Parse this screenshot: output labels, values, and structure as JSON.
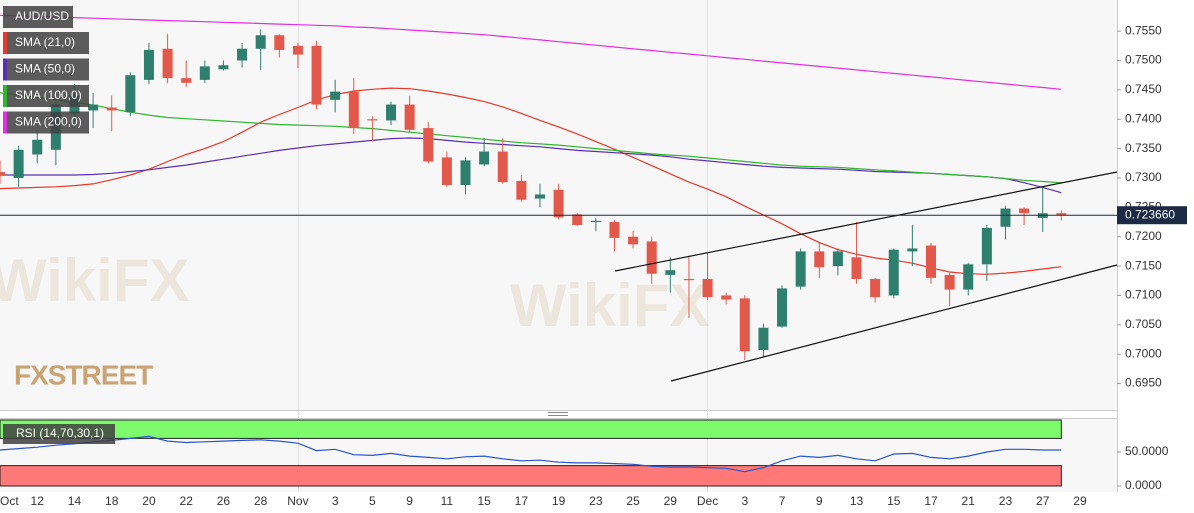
{
  "chart_data": [
    {
      "type": "candlestick",
      "symbol": "AUD/USD",
      "logo": "FXSTREET",
      "watermark": "WikiFX",
      "categories": [
        "Oct",
        null,
        "12",
        null,
        "14",
        null,
        "18",
        null,
        "20",
        null,
        "22",
        null,
        "26",
        null,
        "28",
        null,
        "Nov",
        null,
        "3",
        null,
        "5",
        null,
        "9",
        null,
        "11",
        null,
        "15",
        null,
        "17",
        null,
        "19",
        null,
        "23",
        null,
        "25",
        null,
        "29",
        null,
        "Dec",
        null,
        "3",
        null,
        "7",
        null,
        "9",
        null,
        "13",
        null,
        "15",
        null,
        "17",
        null,
        "21",
        null,
        "23",
        null,
        "27",
        null,
        "29"
      ],
      "open": [
        0.731,
        0.73,
        0.734,
        0.7348,
        0.741,
        0.7415,
        0.742,
        0.7412,
        0.7467,
        0.752,
        0.747,
        0.7467,
        0.7485,
        0.75,
        0.752,
        0.7543,
        0.7525,
        0.7525,
        0.7433,
        0.7447,
        0.74,
        0.7398,
        0.7425,
        0.7385,
        0.7335,
        0.7288,
        0.7323,
        0.7345,
        0.7295,
        0.7265,
        0.728,
        0.7238,
        0.7225,
        0.7225,
        0.72,
        0.7192,
        0.7135,
        0.7128,
        0.7128,
        0.71,
        0.7095,
        0.7007,
        0.7047,
        0.7115,
        0.7175,
        0.715,
        0.7165,
        0.7128,
        0.71,
        0.7175,
        0.7185,
        0.7135,
        0.711,
        0.7153,
        0.7217,
        0.7248,
        0.7232,
        0.724,
        null
      ],
      "high": [
        0.733,
        0.7355,
        0.738,
        0.743,
        0.746,
        0.7445,
        0.744,
        0.748,
        0.753,
        0.7545,
        0.75,
        0.75,
        0.75,
        0.753,
        0.7553,
        0.7545,
        0.753,
        0.7533,
        0.7467,
        0.747,
        0.7405,
        0.743,
        0.744,
        0.7395,
        0.7345,
        0.7335,
        0.7368,
        0.7367,
        0.7305,
        0.729,
        0.729,
        0.724,
        0.7232,
        0.7228,
        0.721,
        0.72,
        0.7165,
        0.7168,
        0.7172,
        0.7105,
        0.71,
        0.7052,
        0.7117,
        0.718,
        0.719,
        0.718,
        0.7225,
        0.713,
        0.718,
        0.722,
        0.719,
        0.714,
        0.7155,
        0.722,
        0.7252,
        0.725,
        0.7283,
        0.7245,
        null
      ],
      "low": [
        0.729,
        0.7285,
        0.7325,
        0.7322,
        0.7395,
        0.7385,
        0.738,
        0.7405,
        0.746,
        0.7462,
        0.7455,
        0.7462,
        0.7483,
        0.7488,
        0.7484,
        0.7505,
        0.7487,
        0.7417,
        0.7412,
        0.7375,
        0.7362,
        0.739,
        0.7378,
        0.7325,
        0.7285,
        0.7272,
        0.732,
        0.729,
        0.726,
        0.725,
        0.723,
        0.7218,
        0.721,
        0.7175,
        0.718,
        0.712,
        0.7105,
        0.7062,
        0.7092,
        0.7085,
        0.699,
        0.6995,
        0.7045,
        0.711,
        0.713,
        0.7135,
        0.712,
        0.7088,
        0.7095,
        0.715,
        0.712,
        0.7082,
        0.71,
        0.7125,
        0.7195,
        0.722,
        0.7208,
        0.7228,
        null
      ],
      "close": [
        0.7305,
        0.7348,
        0.7365,
        0.7425,
        0.744,
        0.7425,
        0.7415,
        0.7475,
        0.7518,
        0.747,
        0.7462,
        0.749,
        0.7492,
        0.752,
        0.7543,
        0.7518,
        0.751,
        0.7425,
        0.7447,
        0.7385,
        0.7398,
        0.7425,
        0.7382,
        0.7328,
        0.7288,
        0.733,
        0.7345,
        0.7293,
        0.7263,
        0.7272,
        0.7233,
        0.722,
        0.7227,
        0.7198,
        0.7187,
        0.7137,
        0.7143,
        0.7126,
        0.7097,
        0.7093,
        0.7005,
        0.7045,
        0.7112,
        0.7175,
        0.7148,
        0.7175,
        0.7128,
        0.7097,
        0.7178,
        0.718,
        0.713,
        0.711,
        0.7153,
        0.7215,
        0.7248,
        0.724,
        0.724,
        0.7237,
        null
      ],
      "up_color": "#2f7f6f",
      "down_color": "#e2584a",
      "series": [
        {
          "name": "SMA (21,0)",
          "color": "#e8372b",
          "values": [
            0.7282,
            0.7283,
            0.7284,
            0.7285,
            0.7287,
            0.729,
            0.7297,
            0.7305,
            0.7315,
            0.7328,
            0.734,
            0.735,
            0.7362,
            0.7378,
            0.7395,
            0.7408,
            0.742,
            0.7433,
            0.7442,
            0.7448,
            0.7451,
            0.7453,
            0.7452,
            0.7448,
            0.7443,
            0.7437,
            0.743,
            0.7421,
            0.741,
            0.7398,
            0.7387,
            0.7375,
            0.7362,
            0.7349,
            0.7335,
            0.7321,
            0.7307,
            0.7293,
            0.7281,
            0.7268,
            0.7252,
            0.7237,
            0.7222,
            0.7205,
            0.719,
            0.7178,
            0.717,
            0.7164,
            0.716,
            0.7155,
            0.7147,
            0.714,
            0.7137,
            0.7136,
            0.7138,
            0.7141,
            0.7145,
            0.7149,
            null
          ]
        },
        {
          "name": "SMA (50,0)",
          "color": "#5a2fb0",
          "values": [
            0.7305,
            0.7305,
            0.7305,
            0.7305,
            0.7305,
            0.7306,
            0.7308,
            0.7311,
            0.7314,
            0.7318,
            0.7322,
            0.7327,
            0.7332,
            0.7337,
            0.7342,
            0.7347,
            0.7351,
            0.7355,
            0.7358,
            0.7361,
            0.7364,
            0.7367,
            0.7368,
            0.7367,
            0.7364,
            0.7361,
            0.7359,
            0.7357,
            0.7355,
            0.7353,
            0.735,
            0.7347,
            0.7345,
            0.7343,
            0.7341,
            0.7339,
            0.7336,
            0.7332,
            0.7329,
            0.7326,
            0.7323,
            0.732,
            0.7318,
            0.7317,
            0.7316,
            0.7315,
            0.7313,
            0.7311,
            0.731,
            0.7309,
            0.7308,
            0.7306,
            0.7304,
            0.7302,
            0.7299,
            0.7292,
            0.7284,
            0.7275,
            null
          ]
        },
        {
          "name": "SMA (100,0)",
          "color": "#2fb52f",
          "values": [
            0.7445,
            0.7441,
            0.7437,
            0.7433,
            0.7429,
            0.7424,
            0.7418,
            0.7412,
            0.7407,
            0.7403,
            0.7401,
            0.7399,
            0.7397,
            0.7395,
            0.7393,
            0.7391,
            0.739,
            0.7389,
            0.7388,
            0.7386,
            0.7384,
            0.7381,
            0.7378,
            0.7375,
            0.7372,
            0.7369,
            0.7366,
            0.7363,
            0.736,
            0.7358,
            0.7356,
            0.7353,
            0.735,
            0.7347,
            0.7344,
            0.7341,
            0.7339,
            0.7337,
            0.7334,
            0.7331,
            0.7328,
            0.7325,
            0.7322,
            0.732,
            0.7319,
            0.7318,
            0.7316,
            0.7314,
            0.7312,
            0.731,
            0.7308,
            0.7306,
            0.7304,
            0.7302,
            0.7299,
            0.7296,
            0.7294,
            0.7292,
            null
          ]
        },
        {
          "name": "SMA (200,0)",
          "color": "#e02fe0",
          "values": [
            0.7577,
            0.7576,
            0.7575,
            0.7574,
            0.7573,
            0.7572,
            0.7571,
            0.757,
            0.7569,
            0.7568,
            0.7567,
            0.7566,
            0.7565,
            0.7564,
            0.7563,
            0.7562,
            0.7561,
            0.756,
            0.7559,
            0.7557,
            0.7556,
            0.7554,
            0.7552,
            0.755,
            0.7548,
            0.7546,
            0.7544,
            0.7541,
            0.7538,
            0.7535,
            0.7532,
            0.7529,
            0.7526,
            0.7523,
            0.752,
            0.7517,
            0.7514,
            0.7511,
            0.7508,
            0.7505,
            0.7502,
            0.7499,
            0.7496,
            0.7493,
            0.749,
            0.7487,
            0.7484,
            0.7481,
            0.7478,
            0.7475,
            0.7472,
            0.7469,
            0.7466,
            0.7463,
            0.746,
            0.7457,
            0.7454,
            0.7451,
            null
          ]
        }
      ],
      "last_price": {
        "value": 0.72366,
        "label": "0.723660"
      },
      "ylim": [
        0.6905,
        0.7603
      ],
      "yticks": [
        {
          "value": 0.695,
          "label": "0.6950"
        },
        {
          "value": 0.7,
          "label": "0.7000"
        },
        {
          "value": 0.705,
          "label": "0.7050"
        },
        {
          "value": 0.71,
          "label": "0.7100"
        },
        {
          "value": 0.715,
          "label": "0.7150"
        },
        {
          "value": 0.72,
          "label": "0.7200"
        },
        {
          "value": 0.725,
          "label": "0.7250"
        },
        {
          "value": 0.73,
          "label": "0.7300"
        },
        {
          "value": 0.735,
          "label": "0.7350"
        },
        {
          "value": 0.74,
          "label": "0.7400"
        },
        {
          "value": 0.745,
          "label": "0.7450"
        },
        {
          "value": 0.75,
          "label": "0.7500"
        },
        {
          "value": 0.755,
          "label": "0.7550"
        }
      ]
    },
    {
      "type": "line",
      "name": "RSI (14,70,30,1)",
      "color": "#2a55c8",
      "values": [
        53,
        55,
        57,
        60,
        62,
        65,
        67,
        70,
        73,
        66,
        64,
        65,
        66,
        67,
        68,
        66,
        63,
        52,
        54,
        46,
        45,
        48,
        44,
        42,
        40,
        43,
        44,
        40,
        37,
        38,
        35,
        34,
        34,
        33,
        32,
        29,
        28,
        28,
        27,
        26,
        21,
        27,
        37,
        44,
        42,
        45,
        40,
        37,
        47,
        48,
        42,
        40,
        44,
        50,
        54,
        54,
        53,
        53,
        null
      ],
      "upper_band": 70,
      "lower_band": 30,
      "upper_color": "#7dfb6c",
      "lower_color": "#ff7878",
      "ylim": [
        -8.8,
        100
      ],
      "yticks": [
        {
          "value": 50,
          "label": "50.0000"
        },
        {
          "value": 0,
          "label": "0.0000"
        }
      ]
    }
  ]
}
